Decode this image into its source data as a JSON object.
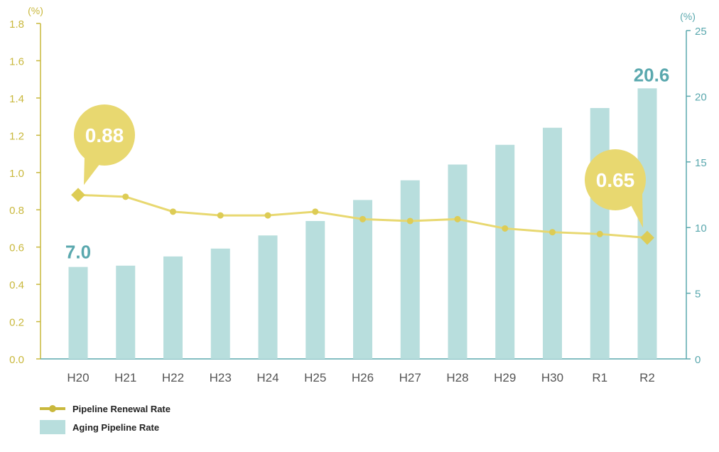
{
  "chart_data": {
    "type": "bar+line",
    "categories": [
      "H20",
      "H21",
      "H22",
      "H23",
      "H24",
      "H25",
      "H26",
      "H27",
      "H28",
      "H29",
      "H30",
      "R1",
      "R2"
    ],
    "series": [
      {
        "name": "Aging Pipeline Rate",
        "type": "bar",
        "axis": "right",
        "color": "#b8dedd",
        "values": [
          7.0,
          7.1,
          7.8,
          8.4,
          9.4,
          10.5,
          12.1,
          13.6,
          14.8,
          16.3,
          17.6,
          19.1,
          20.6
        ]
      },
      {
        "name": "Pipeline Renewal Rate",
        "type": "line",
        "axis": "left",
        "color": "#e8d870",
        "marker_color": "#ddcc55",
        "values": [
          0.88,
          0.87,
          0.79,
          0.77,
          0.77,
          0.79,
          0.75,
          0.74,
          0.75,
          0.7,
          0.68,
          0.67,
          0.65
        ]
      }
    ],
    "left_axis": {
      "unit": "(%)",
      "ylim": [
        0,
        1.8
      ],
      "ticks": [
        "0.0",
        "0.2",
        "0.4",
        "0.6",
        "0.8",
        "1.0",
        "1.2",
        "1.4",
        "1.6",
        "1.8"
      ],
      "color": "#c9b83c"
    },
    "right_axis": {
      "unit": "(%)",
      "ylim": [
        0,
        25
      ],
      "ticks": [
        "0",
        "5",
        "10",
        "15",
        "20",
        "25"
      ],
      "color": "#5aa8ae"
    },
    "annotations": {
      "bar_first": "7.0",
      "bar_last": "20.6",
      "bubble_first": "0.88",
      "bubble_last": "0.65"
    },
    "grid": false,
    "legend_position": "bottom-left"
  },
  "legend": {
    "line_label": "Pipeline Renewal Rate",
    "bar_label": "Aging Pipeline Rate"
  }
}
